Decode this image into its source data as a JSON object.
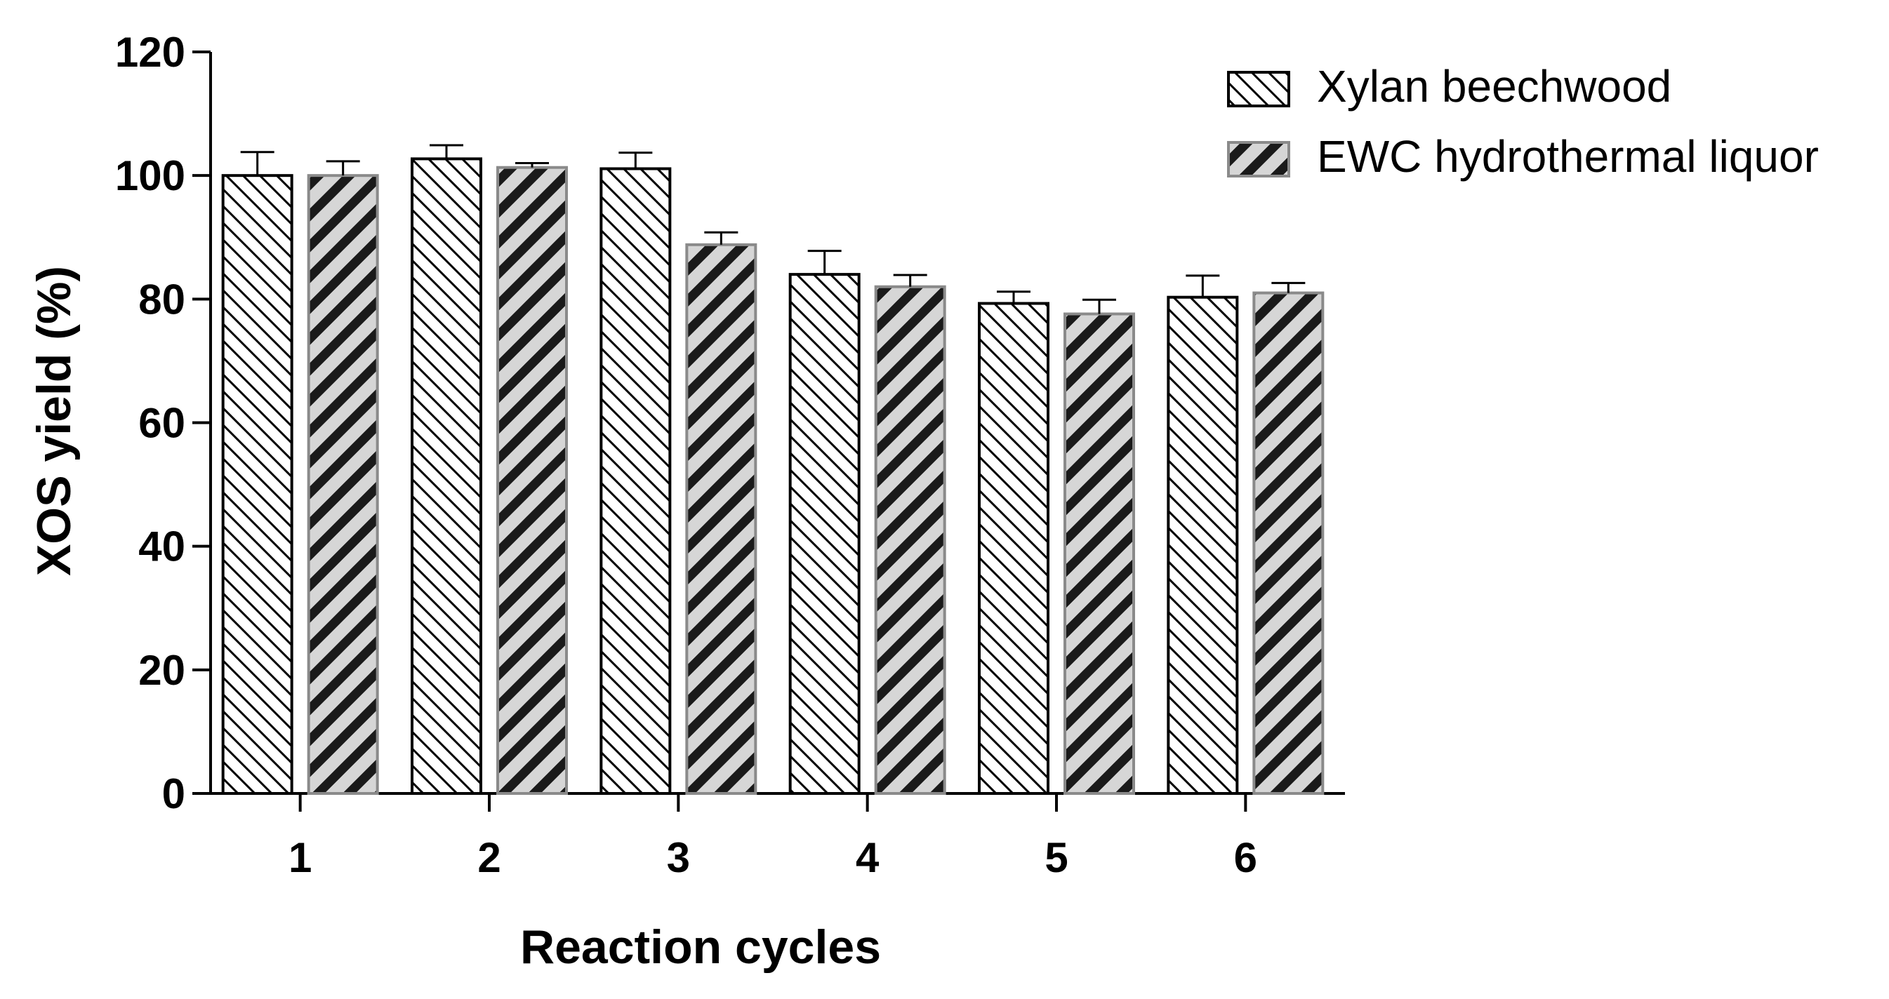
{
  "chart_data": {
    "type": "bar",
    "title": "",
    "xlabel": "Reaction cycles",
    "ylabel": "XOS yield (%)",
    "ylim": [
      0,
      120
    ],
    "yticks": [
      0,
      20,
      40,
      60,
      80,
      100,
      120
    ],
    "ytick_labels": [
      "0",
      "20",
      "40",
      "60",
      "80",
      "100",
      "120"
    ],
    "categories": [
      "1",
      "2",
      "3",
      "4",
      "5",
      "6"
    ],
    "grid": false,
    "legend_position": "top-right",
    "series": [
      {
        "name": "Xylan beechwood",
        "values": [
          100,
          102.7,
          101.1,
          84,
          79.3,
          80.3
        ],
        "errors": [
          3.8,
          2.2,
          2.6,
          3.8,
          1.9,
          3.5
        ],
        "fill": "#ffffff",
        "stripe_color": "#000000",
        "pattern": "back-diagonal-thin"
      },
      {
        "name": "EWC hydrothermal liquor",
        "values": [
          100,
          101.3,
          88.8,
          82,
          77.6,
          81
        ],
        "errors": [
          2.3,
          0.7,
          2,
          1.9,
          2.3,
          1.6
        ],
        "fill": "#d6d6d6",
        "stripe_color": "#1a1a1a",
        "pattern": "forward-diagonal-thick"
      }
    ]
  }
}
